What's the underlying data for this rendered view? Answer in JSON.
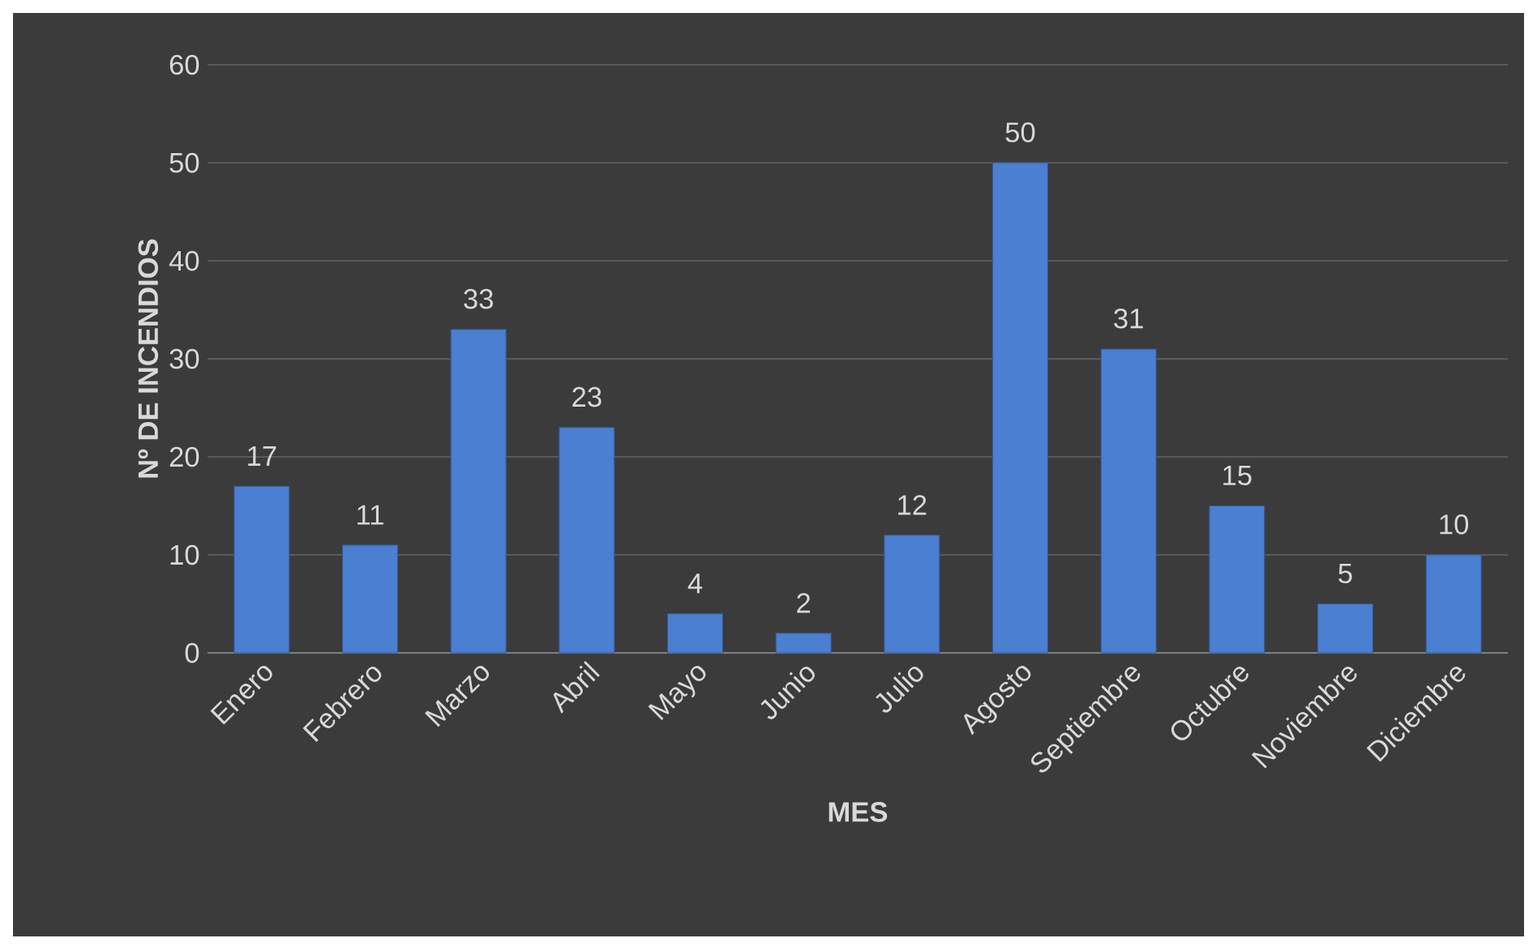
{
  "chart_data": {
    "type": "bar",
    "xlabel": "MES",
    "ylabel": "Nº DE INCENDIOS",
    "categories": [
      "Enero",
      "Febrero",
      "Marzo",
      "Abril",
      "Mayo",
      "Junio",
      "Julio",
      "Agosto",
      "Septiembre",
      "Octubre",
      "Noviembre",
      "Diciembre"
    ],
    "values": [
      17,
      11,
      33,
      23,
      4,
      2,
      12,
      50,
      31,
      15,
      5,
      10
    ],
    "color": "#4a7fd1",
    "ylim": [
      0,
      60
    ],
    "yticks": [
      0,
      10,
      20,
      30,
      40,
      50,
      60
    ],
    "grid": "y",
    "data_labels": true
  }
}
